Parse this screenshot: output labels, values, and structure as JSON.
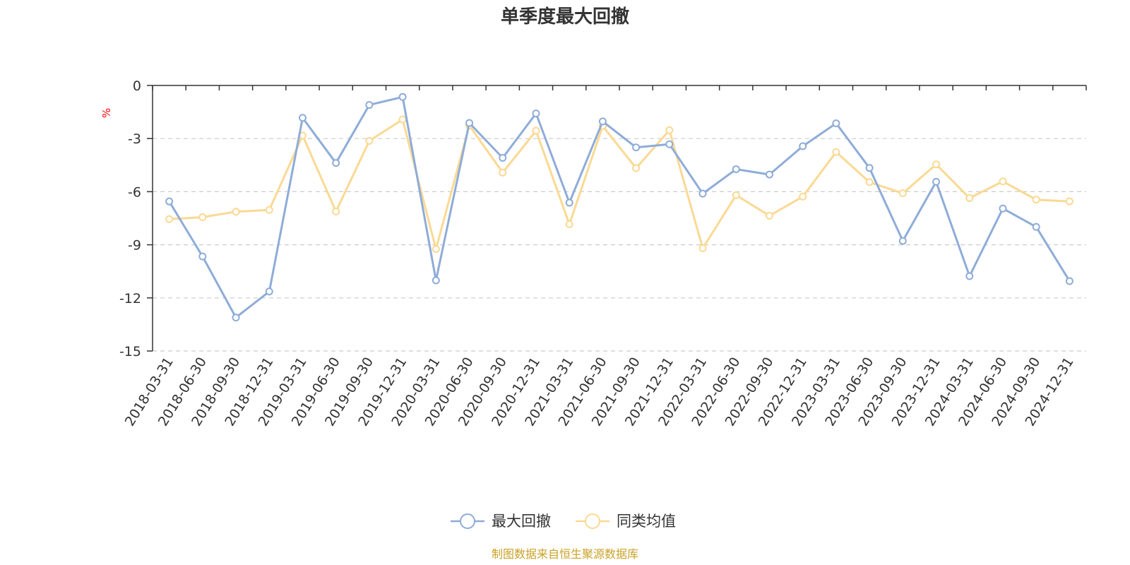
{
  "chart_data": {
    "type": "line",
    "title": "单季度最大回撤",
    "ylabel": "%",
    "ylim": [
      -15,
      0
    ],
    "yticks": [
      0,
      -3,
      -6,
      -9,
      -12,
      -15
    ],
    "grid": true,
    "legend_position": "bottom-center",
    "categories": [
      "2018-03-31",
      "2018-06-30",
      "2018-09-30",
      "2018-12-31",
      "2019-03-31",
      "2019-06-30",
      "2019-09-30",
      "2019-12-31",
      "2020-03-31",
      "2020-06-30",
      "2020-09-30",
      "2020-12-31",
      "2021-03-31",
      "2021-06-30",
      "2021-09-30",
      "2021-12-31",
      "2022-03-31",
      "2022-06-30",
      "2022-09-30",
      "2022-12-31",
      "2023-03-31",
      "2023-06-30",
      "2023-09-30",
      "2023-12-31",
      "2024-03-31",
      "2024-06-30",
      "2024-09-30",
      "2024-12-31"
    ],
    "series": [
      {
        "name": "最大回撤",
        "color": "#8eacd8",
        "values": [
          -6.55,
          -9.66,
          -13.11,
          -11.64,
          -1.83,
          -4.38,
          -1.1,
          -0.65,
          -11.01,
          -2.12,
          -4.09,
          -1.58,
          -6.62,
          -2.03,
          -3.5,
          -3.32,
          -6.11,
          -4.73,
          -5.03,
          -3.43,
          -2.14,
          -4.66,
          -8.78,
          -5.44,
          -10.77,
          -6.95,
          -7.99,
          -11.05
        ]
      },
      {
        "name": "同类均值",
        "color": "#fad993",
        "values": [
          -7.55,
          -7.44,
          -7.13,
          -7.03,
          -2.83,
          -7.12,
          -3.13,
          -1.92,
          -9.24,
          -2.26,
          -4.92,
          -2.56,
          -7.84,
          -2.29,
          -4.67,
          -2.53,
          -9.19,
          -6.2,
          -7.36,
          -6.28,
          -3.76,
          -5.46,
          -6.09,
          -4.46,
          -6.36,
          -5.42,
          -6.45,
          -6.55
        ]
      }
    ]
  },
  "footer": {
    "source": "制图数据来自恒生聚源数据库"
  }
}
